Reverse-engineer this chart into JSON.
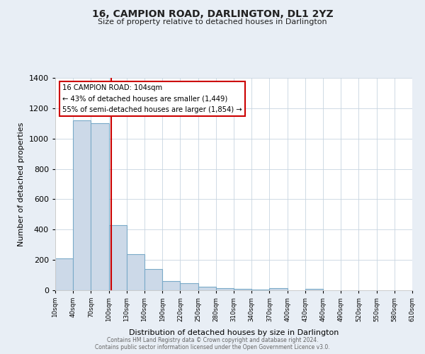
{
  "title": "16, CAMPION ROAD, DARLINGTON, DL1 2YZ",
  "subtitle": "Size of property relative to detached houses in Darlington",
  "xlabel": "Distribution of detached houses by size in Darlington",
  "ylabel": "Number of detached properties",
  "bar_color": "#ccd9e8",
  "bar_edge_color": "#7aaac8",
  "background_color": "#e8eef5",
  "plot_bg_color": "#ffffff",
  "bin_starts": [
    10,
    40,
    70,
    100,
    130,
    160,
    190,
    220,
    250,
    280,
    310,
    340,
    370,
    400,
    430,
    460,
    490,
    520,
    550,
    580
  ],
  "bin_width": 30,
  "counts": [
    210,
    1120,
    1100,
    430,
    240,
    140,
    60,
    47,
    25,
    15,
    10,
    5,
    12,
    0,
    8,
    0,
    0,
    0,
    0,
    0
  ],
  "marker_value": 104,
  "marker_color": "#cc0000",
  "annotation_line1": "16 CAMPION ROAD: 104sqm",
  "annotation_line2": "← 43% of detached houses are smaller (1,449)",
  "annotation_line3": "55% of semi-detached houses are larger (1,854) →",
  "annotation_box_color": "#ffffff",
  "annotation_box_edge_color": "#cc0000",
  "ylim": [
    0,
    1400
  ],
  "yticks": [
    0,
    200,
    400,
    600,
    800,
    1000,
    1200,
    1400
  ],
  "tick_labels": [
    "10sqm",
    "40sqm",
    "70sqm",
    "100sqm",
    "130sqm",
    "160sqm",
    "190sqm",
    "220sqm",
    "250sqm",
    "280sqm",
    "310sqm",
    "340sqm",
    "370sqm",
    "400sqm",
    "430sqm",
    "460sqm",
    "490sqm",
    "520sqm",
    "550sqm",
    "580sqm",
    "610sqm"
  ],
  "footer_line1": "Contains HM Land Registry data © Crown copyright and database right 2024.",
  "footer_line2": "Contains public sector information licensed under the Open Government Licence v3.0."
}
